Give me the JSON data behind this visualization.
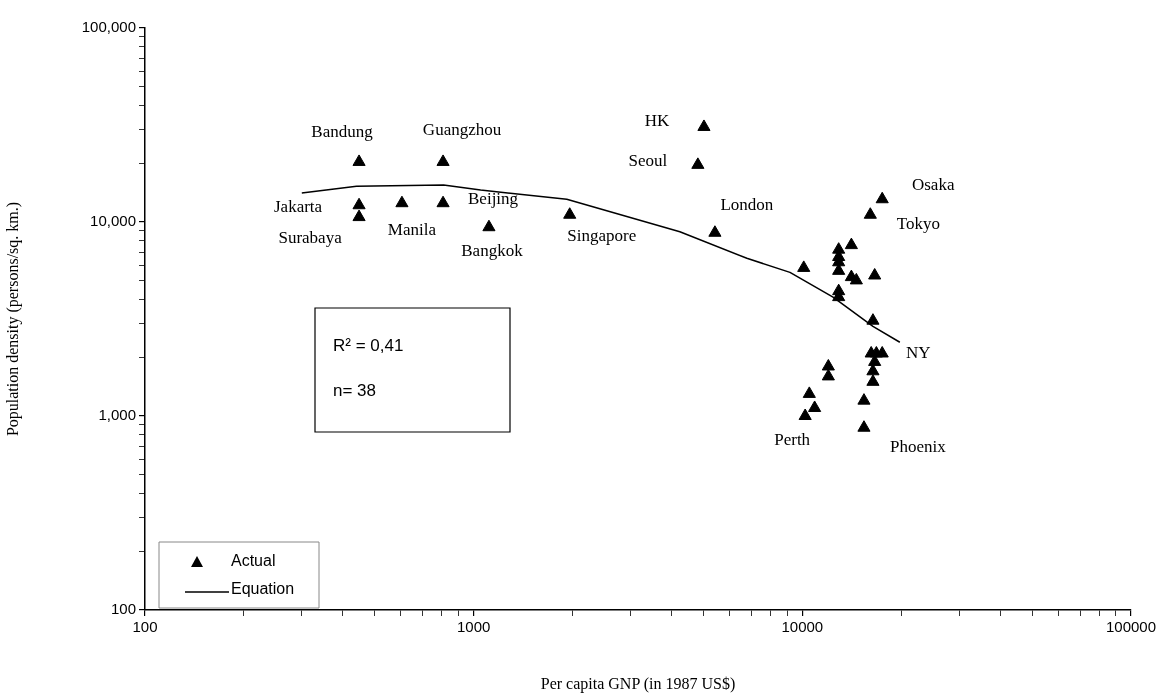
{
  "chart_data": {
    "type": "scatter",
    "xlabel": "Per capita GNP (in 1987 US$)",
    "ylabel": "Population density (persons/sq. km.)",
    "log": "xy",
    "legend": "bottom left",
    "marker": "triangle",
    "xlim": [
      100,
      100000
    ],
    "ylim": [
      100,
      100000
    ],
    "xticks": [
      100,
      {
        "value": 200,
        "label": null
      },
      {
        "value": 300,
        "label": null
      },
      {
        "value": 400,
        "label": null
      },
      {
        "value": 500,
        "label": null
      },
      {
        "value": 600,
        "label": null
      },
      {
        "value": 700,
        "label": null
      },
      {
        "value": 800,
        "label": null
      },
      {
        "value": 900,
        "label": null
      },
      1000,
      {
        "value": 2000,
        "label": null
      },
      {
        "value": 3000,
        "label": null
      },
      {
        "value": 4000,
        "label": null
      },
      {
        "value": 5000,
        "label": null
      },
      {
        "value": 6000,
        "label": null
      },
      {
        "value": 7000,
        "label": null
      },
      {
        "value": 8000,
        "label": null
      },
      {
        "value": 9000,
        "label": null
      },
      10000,
      {
        "value": 20000,
        "label": null
      },
      {
        "value": 30000,
        "label": null
      },
      {
        "value": 40000,
        "label": null
      },
      {
        "value": 50000,
        "label": null
      },
      {
        "value": 60000,
        "label": null
      },
      {
        "value": 70000,
        "label": null
      },
      {
        "value": 80000,
        "label": null
      },
      {
        "value": 90000,
        "label": null
      },
      100000
    ],
    "yticks": [
      100,
      {
        "value": 200,
        "label": null
      },
      {
        "value": 300,
        "label": null
      },
      {
        "value": 400,
        "label": null
      },
      {
        "value": 500,
        "label": null
      },
      {
        "value": 600,
        "label": null
      },
      {
        "value": 700,
        "label": null
      },
      {
        "value": 800,
        "label": null
      },
      {
        "value": 900,
        "label": null
      },
      {
        "value": 1000,
        "label": "1,000"
      },
      {
        "value": 2000,
        "label": null
      },
      {
        "value": 3000,
        "label": null
      },
      {
        "value": 4000,
        "label": null
      },
      {
        "value": 5000,
        "label": null
      },
      {
        "value": 6000,
        "label": null
      },
      {
        "value": 7000,
        "label": null
      },
      {
        "value": 8000,
        "label": null
      },
      {
        "value": 9000,
        "label": null
      },
      {
        "value": 10000,
        "label": "10,000"
      },
      {
        "value": 20000,
        "label": null
      },
      {
        "value": 30000,
        "label": null
      },
      {
        "value": 40000,
        "label": null
      },
      {
        "value": 50000,
        "label": null
      },
      {
        "value": 60000,
        "label": null
      },
      {
        "value": 70000,
        "label": null
      },
      {
        "value": 80000,
        "label": null
      },
      {
        "value": 90000,
        "label": null
      },
      {
        "value": 100000,
        "label": "100,000"
      }
    ],
    "series": [
      {
        "name": "Actual",
        "color": "#000000",
        "x": [
          448,
          807,
          448,
          448,
          605,
          807,
          1113,
          1960,
          5020,
          4810,
          5420,
          17500,
          16100,
          14100,
          12900,
          12900,
          12900,
          12900,
          14100,
          14600,
          16600,
          10100,
          12900,
          12900,
          16400,
          16200,
          16800,
          17500,
          16600,
          16400,
          16400,
          15400,
          15400,
          12000,
          12000,
          10500,
          10900,
          10200
        ],
        "values": [
          20400,
          20400,
          12200,
          10600,
          12500,
          12500,
          9400,
          10900,
          30900,
          19700,
          8800,
          13100,
          10900,
          7600,
          7200,
          6600,
          6200,
          5600,
          5200,
          5000,
          5300,
          5800,
          4400,
          4100,
          3100,
          2100,
          2100,
          2100,
          1900,
          1700,
          1500,
          1200,
          870,
          1800,
          1600,
          1300,
          1100,
          1000
        ]
      },
      {
        "name": "Equation",
        "type": "line",
        "color": "#000000",
        "marker": "none",
        "x": [
          300,
          440,
          810,
          1050,
          1920,
          4240,
          6780,
          9170,
          12400,
          16400,
          19800
        ],
        "values": [
          14100,
          15300,
          15500,
          14600,
          13100,
          8900,
          6500,
          5500,
          4100,
          2900,
          2400
        ]
      }
    ],
    "annotations": [
      {
        "text": "Bandung",
        "x": 448,
        "y": 20400
      },
      {
        "text": "Guangzhou",
        "x": 807,
        "y": 20400
      },
      {
        "text": "Jakarta",
        "x": 448,
        "y": 12200
      },
      {
        "text": "Surabaya",
        "x": 448,
        "y": 10600
      },
      {
        "text": "Manila",
        "x": 605,
        "y": 12500
      },
      {
        "text": "Beijing",
        "x": 807,
        "y": 12500
      },
      {
        "text": "Bangkok",
        "x": 1113,
        "y": 9400
      },
      {
        "text": "Singapore",
        "x": 1960,
        "y": 10900
      },
      {
        "text": "HK",
        "x": 5020,
        "y": 30900
      },
      {
        "text": "Seoul",
        "x": 4810,
        "y": 19700
      },
      {
        "text": "London",
        "x": 5420,
        "y": 8800
      },
      {
        "text": "Osaka",
        "x": 17500,
        "y": 13100
      },
      {
        "text": "Tokyo",
        "x": 16100,
        "y": 10900
      },
      {
        "text": "NY",
        "x": 17500,
        "y": 2100
      },
      {
        "text": "Phoenix",
        "x": 15400,
        "y": 870
      },
      {
        "text": "Perth",
        "x": 10200,
        "y": 1000
      },
      "R² = 0,41",
      "n= 38"
    ]
  }
}
